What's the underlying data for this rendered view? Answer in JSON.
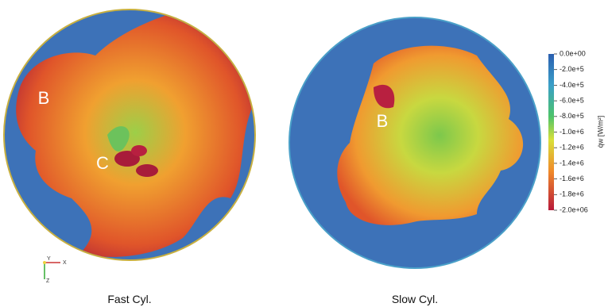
{
  "panels": [
    {
      "caption": "Fast Cyl.",
      "annotations": [
        "B",
        "C"
      ]
    },
    {
      "caption": "Slow Cyl.",
      "annotations": [
        "B"
      ]
    }
  ],
  "axes_triad": [
    "Y",
    "X",
    "Z"
  ],
  "colorbar": {
    "label": "q̇w [W/m²]",
    "lim": [
      -2000000,
      0
    ],
    "ticks": [
      {
        "value": 0,
        "label": "0.0e+00"
      },
      {
        "value": -200000,
        "label": "-2.0e+5"
      },
      {
        "value": -400000,
        "label": "-4.0e+5"
      },
      {
        "value": -600000,
        "label": "-6.0e+5"
      },
      {
        "value": -800000,
        "label": "-8.0e+5"
      },
      {
        "value": -1000000,
        "label": "-1.0e+6"
      },
      {
        "value": -1200000,
        "label": "-1.2e+6"
      },
      {
        "value": -1400000,
        "label": "-1.4e+6"
      },
      {
        "value": -1600000,
        "label": "-1.6e+6"
      },
      {
        "value": -1800000,
        "label": "-1.8e+6"
      },
      {
        "value": -2000000,
        "label": "-2.0e+06"
      }
    ]
  }
}
